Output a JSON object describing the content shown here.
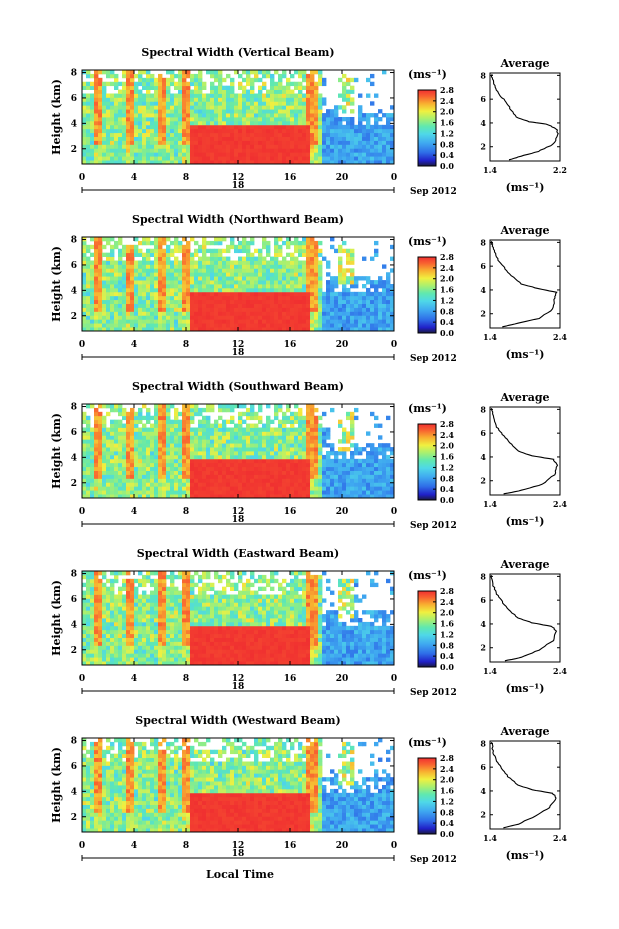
{
  "figure": {
    "xaxis_title": "Local Time",
    "date_label": "Sep 2012",
    "day_label": "18",
    "colorbar_unit": "(ms⁻¹)",
    "colorbar_ticks": [
      "0.0",
      "0.4",
      "0.8",
      "1.2",
      "1.6",
      "2.0",
      "2.4",
      "2.8"
    ],
    "avg_title": "Average",
    "avg_unit": "(ms⁻¹)"
  },
  "chart_data": [
    {
      "type": "heatmap",
      "title": "Spectral Width (Vertical Beam)",
      "ylabel": "Height (km)",
      "xlabel": "Local Time",
      "x_ticks": [
        "0",
        "4",
        "8",
        "12",
        "16",
        "20",
        "0"
      ],
      "xlim": [
        0,
        24
      ],
      "y_ticks": [
        "2",
        "4",
        "6",
        "8"
      ],
      "ylim": [
        0.8,
        8.2
      ],
      "colorbar": {
        "label": "(ms⁻¹)",
        "range": [
          0.0,
          2.8
        ],
        "ticks": [
          "0.0",
          "0.4",
          "0.8",
          "1.2",
          "1.6",
          "2.0",
          "2.4",
          "2.8"
        ]
      },
      "high_region": {
        "x_start": 8.2,
        "x_end": 17.5,
        "top_km": 4.0,
        "value": 2.8
      },
      "average_profile": {
        "title": "Average",
        "xlabel": "(ms⁻¹)",
        "x_ticks": [
          "1.4",
          "2.2"
        ],
        "xlim": [
          1.4,
          2.2
        ],
        "y_ticks": [
          "2",
          "4",
          "6",
          "8"
        ],
        "ylim": [
          0.8,
          8.2
        ],
        "points": [
          [
            1.62,
            0.9
          ],
          [
            1.75,
            1.2
          ],
          [
            1.95,
            1.6
          ],
          [
            2.12,
            2.2
          ],
          [
            2.18,
            3.0
          ],
          [
            2.16,
            3.5
          ],
          [
            2.05,
            3.9
          ],
          [
            1.85,
            4.1
          ],
          [
            1.7,
            4.5
          ],
          [
            1.63,
            5.2
          ],
          [
            1.57,
            5.9
          ],
          [
            1.5,
            6.4
          ],
          [
            1.46,
            7.0
          ],
          [
            1.43,
            7.7
          ],
          [
            1.42,
            8.1
          ]
        ]
      }
    },
    {
      "type": "heatmap",
      "title": "Spectral Width (Northward Beam)",
      "ylabel": "Height (km)",
      "xlabel": "Local Time",
      "x_ticks": [
        "0",
        "4",
        "8",
        "12",
        "16",
        "20",
        "0"
      ],
      "xlim": [
        0,
        24
      ],
      "y_ticks": [
        "2",
        "4",
        "6",
        "8"
      ],
      "ylim": [
        0.8,
        8.2
      ],
      "colorbar": {
        "label": "(ms⁻¹)",
        "range": [
          0.0,
          2.8
        ],
        "ticks": [
          "0.0",
          "0.4",
          "0.8",
          "1.2",
          "1.6",
          "2.0",
          "2.4",
          "2.8"
        ]
      },
      "high_region": {
        "x_start": 8.2,
        "x_end": 17.5,
        "top_km": 4.0,
        "value": 2.8
      },
      "average_profile": {
        "title": "Average",
        "xlabel": "(ms⁻¹)",
        "x_ticks": [
          "1.4",
          "2.4"
        ],
        "xlim": [
          1.4,
          2.4
        ],
        "y_ticks": [
          "2",
          "4",
          "6",
          "8"
        ],
        "ylim": [
          0.8,
          8.2
        ],
        "points": [
          [
            1.58,
            0.9
          ],
          [
            1.8,
            1.2
          ],
          [
            2.1,
            1.6
          ],
          [
            2.3,
            2.4
          ],
          [
            2.32,
            3.2
          ],
          [
            2.35,
            3.8
          ],
          [
            2.1,
            4.1
          ],
          [
            1.85,
            4.5
          ],
          [
            1.7,
            5.2
          ],
          [
            1.6,
            5.9
          ],
          [
            1.52,
            6.5
          ],
          [
            1.47,
            7.2
          ],
          [
            1.43,
            7.8
          ],
          [
            1.42,
            8.1
          ]
        ]
      }
    },
    {
      "type": "heatmap",
      "title": "Spectral Width (Southward Beam)",
      "ylabel": "Height (km)",
      "xlabel": "Local Time",
      "x_ticks": [
        "0",
        "4",
        "8",
        "12",
        "16",
        "20",
        "0"
      ],
      "xlim": [
        0,
        24
      ],
      "y_ticks": [
        "2",
        "4",
        "6",
        "8"
      ],
      "ylim": [
        0.8,
        8.2
      ],
      "colorbar": {
        "label": "(ms⁻¹)",
        "range": [
          0.0,
          2.8
        ],
        "ticks": [
          "0.0",
          "0.4",
          "0.8",
          "1.2",
          "1.6",
          "2.0",
          "2.4",
          "2.8"
        ]
      },
      "high_region": {
        "x_start": 8.2,
        "x_end": 17.5,
        "top_km": 4.0,
        "value": 2.8
      },
      "average_profile": {
        "title": "Average",
        "xlabel": "(ms⁻¹)",
        "x_ticks": [
          "1.4",
          "2.4"
        ],
        "xlim": [
          1.4,
          2.4
        ],
        "y_ticks": [
          "2",
          "4",
          "6",
          "8"
        ],
        "ylim": [
          0.8,
          8.2
        ],
        "points": [
          [
            1.6,
            0.9
          ],
          [
            1.85,
            1.2
          ],
          [
            2.15,
            1.7
          ],
          [
            2.32,
            2.5
          ],
          [
            2.36,
            3.3
          ],
          [
            2.3,
            3.8
          ],
          [
            2.0,
            4.1
          ],
          [
            1.8,
            4.5
          ],
          [
            1.68,
            5.2
          ],
          [
            1.58,
            5.9
          ],
          [
            1.5,
            6.5
          ],
          [
            1.45,
            7.3
          ],
          [
            1.42,
            8.1
          ]
        ]
      }
    },
    {
      "type": "heatmap",
      "title": "Spectral Width (Eastward Beam)",
      "ylabel": "Height (km)",
      "xlabel": "Local Time",
      "x_ticks": [
        "0",
        "4",
        "8",
        "12",
        "16",
        "20",
        "0"
      ],
      "xlim": [
        0,
        24
      ],
      "y_ticks": [
        "2",
        "4",
        "6",
        "8"
      ],
      "ylim": [
        0.8,
        8.2
      ],
      "colorbar": {
        "label": "(ms⁻¹)",
        "range": [
          0.0,
          2.8
        ],
        "ticks": [
          "0.0",
          "0.4",
          "0.8",
          "1.2",
          "1.6",
          "2.0",
          "2.4",
          "2.8"
        ]
      },
      "high_region": {
        "x_start": 8.2,
        "x_end": 17.5,
        "top_km": 4.0,
        "value": 2.8
      },
      "average_profile": {
        "title": "Average",
        "xlabel": "(ms⁻¹)",
        "x_ticks": [
          "1.4",
          "2.4"
        ],
        "xlim": [
          1.4,
          2.4
        ],
        "y_ticks": [
          "2",
          "4",
          "6",
          "8"
        ],
        "ylim": [
          0.8,
          8.2
        ],
        "points": [
          [
            1.62,
            0.9
          ],
          [
            1.85,
            1.2
          ],
          [
            2.1,
            1.8
          ],
          [
            2.3,
            2.6
          ],
          [
            2.35,
            3.4
          ],
          [
            2.28,
            3.8
          ],
          [
            2.0,
            4.1
          ],
          [
            1.8,
            4.5
          ],
          [
            1.66,
            5.2
          ],
          [
            1.57,
            5.9
          ],
          [
            1.5,
            6.5
          ],
          [
            1.45,
            7.2
          ],
          [
            1.42,
            8.1
          ]
        ]
      }
    },
    {
      "type": "heatmap",
      "title": "Spectral Width (Westward Beam)",
      "ylabel": "Height (km)",
      "xlabel": "Local Time",
      "x_ticks": [
        "0",
        "4",
        "8",
        "12",
        "16",
        "20",
        "0"
      ],
      "xlim": [
        0,
        24
      ],
      "y_ticks": [
        "2",
        "4",
        "6",
        "8"
      ],
      "ylim": [
        0.8,
        8.2
      ],
      "colorbar": {
        "label": "(ms⁻¹)",
        "range": [
          0.0,
          2.8
        ],
        "ticks": [
          "0.0",
          "0.4",
          "0.8",
          "1.2",
          "1.6",
          "2.0",
          "2.4",
          "2.8"
        ]
      },
      "high_region": {
        "x_start": 8.2,
        "x_end": 17.5,
        "top_km": 4.0,
        "value": 2.8
      },
      "average_profile": {
        "title": "Average",
        "xlabel": "(ms⁻¹)",
        "x_ticks": [
          "1.4",
          "2.4"
        ],
        "xlim": [
          1.4,
          2.4
        ],
        "y_ticks": [
          "2",
          "4",
          "6",
          "8"
        ],
        "ylim": [
          0.8,
          8.2
        ],
        "points": [
          [
            1.6,
            0.9
          ],
          [
            1.8,
            1.2
          ],
          [
            2.05,
            1.9
          ],
          [
            2.25,
            2.6
          ],
          [
            2.35,
            3.4
          ],
          [
            2.3,
            3.8
          ],
          [
            2.0,
            4.1
          ],
          [
            1.8,
            4.5
          ],
          [
            1.66,
            5.2
          ],
          [
            1.57,
            5.9
          ],
          [
            1.5,
            6.5
          ],
          [
            1.45,
            7.2
          ],
          [
            1.42,
            8.1
          ]
        ]
      }
    }
  ]
}
